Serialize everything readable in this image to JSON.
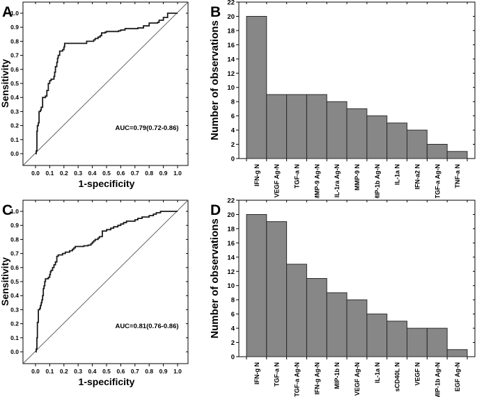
{
  "figure": {
    "background": "#ffffff",
    "axis_color": "#000000",
    "curve_color": "#1a1a1a",
    "diagonal_color": "#555555",
    "bar_fill": "#878787",
    "bar_stroke": "#2b2b2b"
  },
  "chart_data": [
    {
      "type": "line",
      "subtype": "roc",
      "panel_label": "A",
      "xlabel": "1-specificity",
      "ylabel": "Sensitivity",
      "annotation": "AUC=0.79(0.72-0.86)",
      "xlim": [
        0,
        1
      ],
      "ylim": [
        0,
        1
      ],
      "xticks": [
        "0.0",
        "0.1",
        "0.2",
        "0.3",
        "0.4",
        "0.5",
        "0.6",
        "0.7",
        "0.8",
        "0.9",
        "1.0"
      ],
      "yticks": [
        "0.0",
        "0.1",
        "0.2",
        "0.3",
        "0.4",
        "0.5",
        "0.6",
        "0.7",
        "0.8",
        "0.9",
        "1.0"
      ],
      "diagonal": true,
      "grid": false,
      "points": [
        [
          0.0,
          0.0
        ],
        [
          0.005,
          0.02
        ],
        [
          0.01,
          0.16
        ],
        [
          0.013,
          0.2
        ],
        [
          0.02,
          0.22
        ],
        [
          0.025,
          0.3
        ],
        [
          0.035,
          0.31
        ],
        [
          0.04,
          0.33
        ],
        [
          0.05,
          0.4
        ],
        [
          0.07,
          0.41
        ],
        [
          0.08,
          0.45
        ],
        [
          0.09,
          0.5
        ],
        [
          0.1,
          0.52
        ],
        [
          0.11,
          0.53
        ],
        [
          0.13,
          0.55
        ],
        [
          0.135,
          0.58
        ],
        [
          0.14,
          0.62
        ],
        [
          0.15,
          0.65
        ],
        [
          0.155,
          0.68
        ],
        [
          0.16,
          0.7
        ],
        [
          0.17,
          0.73
        ],
        [
          0.19,
          0.74
        ],
        [
          0.2,
          0.76
        ],
        [
          0.205,
          0.785
        ],
        [
          0.36,
          0.8
        ],
        [
          0.41,
          0.81
        ],
        [
          0.42,
          0.82
        ],
        [
          0.44,
          0.83
        ],
        [
          0.455,
          0.84
        ],
        [
          0.465,
          0.86
        ],
        [
          0.49,
          0.865
        ],
        [
          0.5,
          0.87
        ],
        [
          0.585,
          0.875
        ],
        [
          0.6,
          0.88
        ],
        [
          0.63,
          0.89
        ],
        [
          0.72,
          0.895
        ],
        [
          0.76,
          0.91
        ],
        [
          0.8,
          0.93
        ],
        [
          0.86,
          0.935
        ],
        [
          0.87,
          0.95
        ],
        [
          0.9,
          0.97
        ],
        [
          0.93,
          1.0
        ],
        [
          1.0,
          1.0
        ]
      ]
    },
    {
      "type": "bar",
      "panel_label": "B",
      "ylabel": "Number of observations",
      "ylim": [
        0,
        22
      ],
      "yticks": [
        0,
        2,
        4,
        6,
        8,
        10,
        12,
        14,
        16,
        18,
        20,
        22
      ],
      "grid": false,
      "categories": [
        "IFN-g N",
        "VEGF Ag-N",
        "TGF-a N",
        "MMP-9 Ag-N",
        "IL-1ra Ag-N",
        "MMP-9 N",
        "MIP-1b Ag-N",
        "IL-1a N",
        "IFN-a2 N",
        "TGF-a Ag-N",
        "TNF-a N"
      ],
      "values": [
        20,
        9,
        9,
        9,
        8,
        7,
        6,
        5,
        4,
        2,
        1
      ]
    },
    {
      "type": "line",
      "subtype": "roc",
      "panel_label": "C",
      "xlabel": "1-specificity",
      "ylabel": "Sensitivity",
      "annotation": "AUC=0.81(0.76-0.86)",
      "xlim": [
        0,
        1
      ],
      "ylim": [
        0,
        1
      ],
      "xticks": [
        "0.0",
        "0.1",
        "0.2",
        "0.3",
        "0.4",
        "0.5",
        "0.6",
        "0.7",
        "0.8",
        "0.9",
        "1.0"
      ],
      "yticks": [
        "0.0",
        "0.1",
        "0.2",
        "0.3",
        "0.4",
        "0.5",
        "0.6",
        "0.7",
        "0.8",
        "0.9",
        "1.0"
      ],
      "diagonal": true,
      "grid": false,
      "points": [
        [
          0.0,
          0.0
        ],
        [
          0.005,
          0.02
        ],
        [
          0.01,
          0.1
        ],
        [
          0.013,
          0.21
        ],
        [
          0.02,
          0.3
        ],
        [
          0.03,
          0.31
        ],
        [
          0.035,
          0.33
        ],
        [
          0.04,
          0.35
        ],
        [
          0.045,
          0.37
        ],
        [
          0.05,
          0.4
        ],
        [
          0.055,
          0.45
        ],
        [
          0.06,
          0.47
        ],
        [
          0.065,
          0.5
        ],
        [
          0.07,
          0.52
        ],
        [
          0.09,
          0.53
        ],
        [
          0.1,
          0.55
        ],
        [
          0.105,
          0.57
        ],
        [
          0.11,
          0.58
        ],
        [
          0.12,
          0.6
        ],
        [
          0.13,
          0.62
        ],
        [
          0.14,
          0.64
        ],
        [
          0.15,
          0.68
        ],
        [
          0.16,
          0.69
        ],
        [
          0.19,
          0.7
        ],
        [
          0.21,
          0.71
        ],
        [
          0.24,
          0.72
        ],
        [
          0.26,
          0.73
        ],
        [
          0.27,
          0.74
        ],
        [
          0.28,
          0.75
        ],
        [
          0.34,
          0.755
        ],
        [
          0.37,
          0.76
        ],
        [
          0.39,
          0.77
        ],
        [
          0.4,
          0.78
        ],
        [
          0.41,
          0.79
        ],
        [
          0.42,
          0.8
        ],
        [
          0.44,
          0.81
        ],
        [
          0.45,
          0.82
        ],
        [
          0.47,
          0.86
        ],
        [
          0.5,
          0.87
        ],
        [
          0.53,
          0.88
        ],
        [
          0.55,
          0.89
        ],
        [
          0.58,
          0.9
        ],
        [
          0.6,
          0.91
        ],
        [
          0.62,
          0.92
        ],
        [
          0.64,
          0.93
        ],
        [
          0.7,
          0.94
        ],
        [
          0.72,
          0.95
        ],
        [
          0.75,
          0.96
        ],
        [
          0.8,
          0.97
        ],
        [
          0.83,
          0.98
        ],
        [
          0.85,
          0.99
        ],
        [
          0.88,
          1.0
        ],
        [
          1.0,
          1.0
        ]
      ]
    },
    {
      "type": "bar",
      "panel_label": "D",
      "ylabel": "Number of observations",
      "ylim": [
        0,
        22
      ],
      "yticks": [
        0,
        2,
        4,
        6,
        8,
        10,
        12,
        14,
        16,
        18,
        20,
        22
      ],
      "grid": false,
      "categories": [
        "IFN-g N",
        "TGF-a N",
        "TGF-a Ag-N",
        "IFN-g Ag-N",
        "MIP-1b N",
        "VEGF Ag-N",
        "IL-1a N",
        "sCD40L N",
        "VEGF N",
        "MIP-1b Ag-N",
        "EGF Ag-N"
      ],
      "values": [
        20,
        19,
        13,
        11,
        9,
        8,
        6,
        5,
        4,
        4,
        1
      ]
    }
  ]
}
